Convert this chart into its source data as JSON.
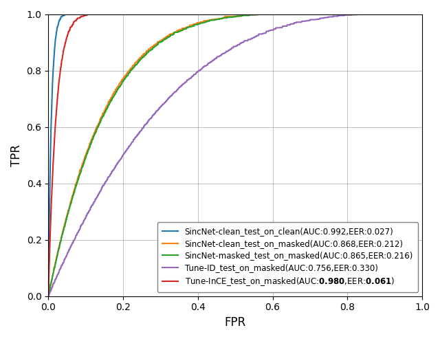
{
  "curves": [
    {
      "label_prefix": "SincNet-clean_test_on_clean(AUC:",
      "label_auc": "0.992",
      "label_mid": ",EER:",
      "label_eer": "0.027",
      "label_suffix": ")",
      "color": "#1f77b4",
      "auc": 0.992,
      "eer": 0.027,
      "bold_values": false
    },
    {
      "label_prefix": "SincNet-clean_test_on_masked(AUC:",
      "label_auc": "0.868",
      "label_mid": ",EER:",
      "label_eer": "0.212",
      "label_suffix": ")",
      "color": "#ff7f0e",
      "auc": 0.868,
      "eer": 0.212,
      "bold_values": false
    },
    {
      "label_prefix": "SincNet-masked_test_on_masked(AUC:",
      "label_auc": "0.865",
      "label_mid": ",EER:",
      "label_eer": "0.216",
      "label_suffix": ")",
      "color": "#2ca02c",
      "auc": 0.865,
      "eer": 0.216,
      "bold_values": false
    },
    {
      "label_prefix": "Tune-ID_test_on_masked(AUC:",
      "label_auc": "0.756",
      "label_mid": ",EER:",
      "label_eer": "0.330",
      "label_suffix": ")",
      "color": "#9467bd",
      "auc": 0.756,
      "eer": 0.33,
      "bold_values": false
    },
    {
      "label_prefix": "Tune-InCE_test_on_masked(AUC:",
      "label_auc": "0.980",
      "label_mid": ",EER:",
      "label_eer": "0.061",
      "label_suffix": ")",
      "color": "#d62728",
      "auc": 0.98,
      "eer": 0.061,
      "bold_values": true
    }
  ],
  "xlabel": "FPR",
  "ylabel": "TPR",
  "xlim": [
    0.0,
    1.0
  ],
  "ylim": [
    0.0,
    1.0
  ],
  "grid": true,
  "legend_loc": "lower right",
  "figsize": [
    6.4,
    4.93
  ],
  "dpi": 100,
  "linewidth": 1.5,
  "legend_fontsize": 8.5,
  "axis_fontsize": 12
}
